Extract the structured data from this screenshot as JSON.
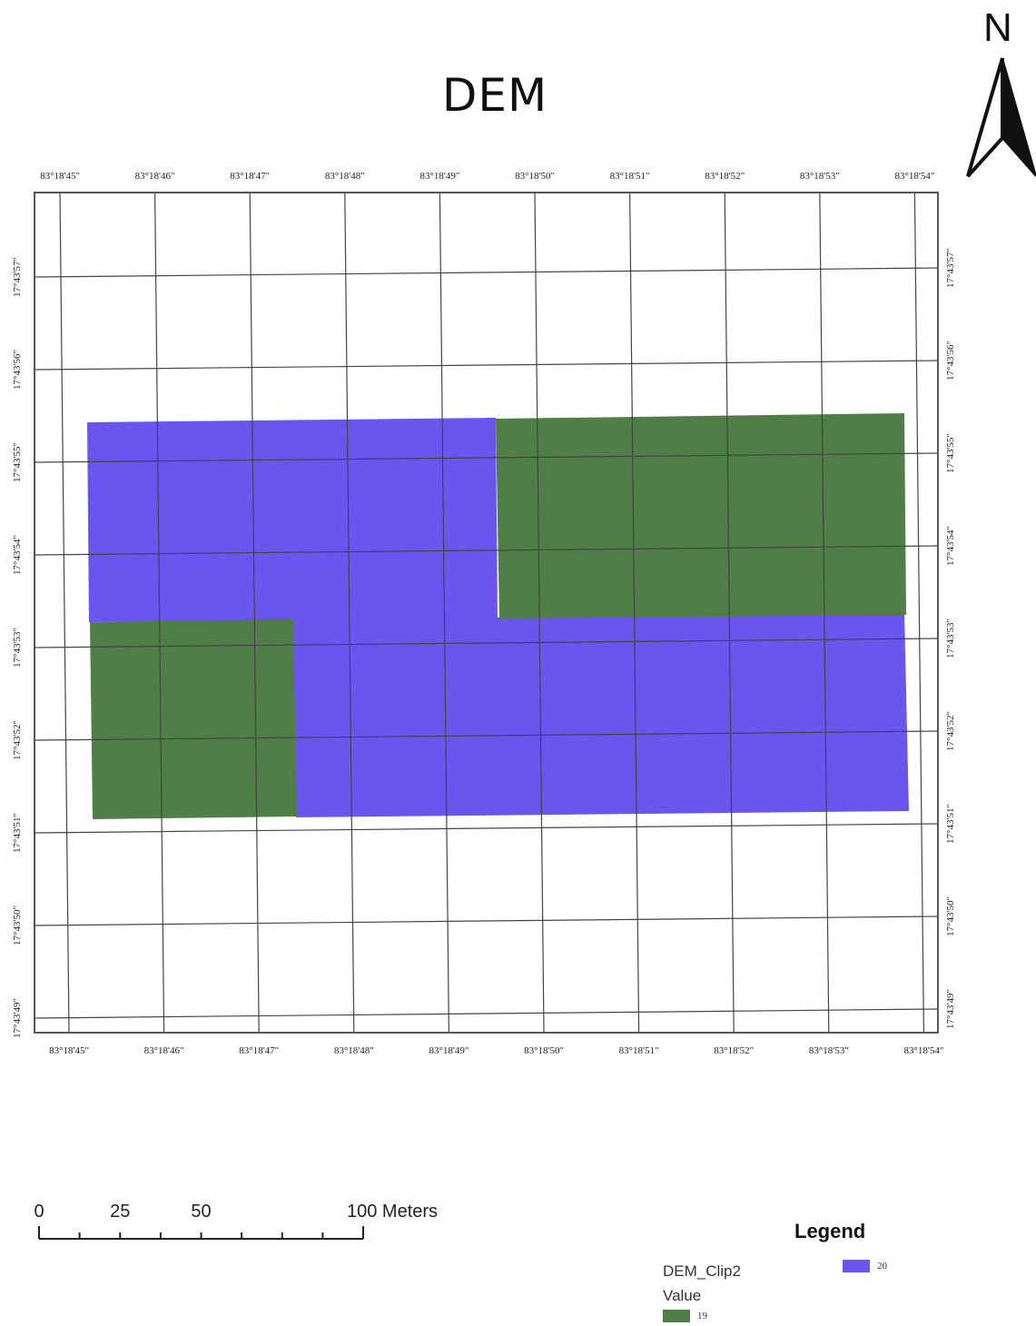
{
  "map": {
    "title": "DEM",
    "north_label": "N",
    "grid_labels": {
      "longitude": [
        "83°18'45\"",
        "83°18'46\"",
        "83°18'47\"",
        "83°18'48\"",
        "83°18'49\"",
        "83°18'50\"",
        "83°18'51\"",
        "83°18'52\"",
        "83°18'53\"",
        "83°18'54\""
      ],
      "latitude": [
        "17°43'57\"",
        "17°43'56\"",
        "17°43'55\"",
        "17°43'54\"",
        "17°43'53\"",
        "17°43'52\"",
        "17°43'51\"",
        "17°43'50\"",
        "17°43'49\""
      ]
    },
    "raster": {
      "layer": "DEM_Clip2",
      "classes": [
        {
          "value": "20",
          "color": "#6a55ef"
        },
        {
          "value": "19",
          "color": "#4f7f46"
        }
      ]
    }
  },
  "scalebar": {
    "labels": [
      "0",
      "25",
      "50",
      "100 Meters"
    ],
    "max_meters": 100
  },
  "legend": {
    "title": "Legend",
    "layer_name": "DEM_Clip2",
    "field_name": "Value",
    "items": [
      {
        "label": "20",
        "color": "#6a55ef"
      },
      {
        "label": "19",
        "color": "#4f7f46"
      }
    ]
  }
}
